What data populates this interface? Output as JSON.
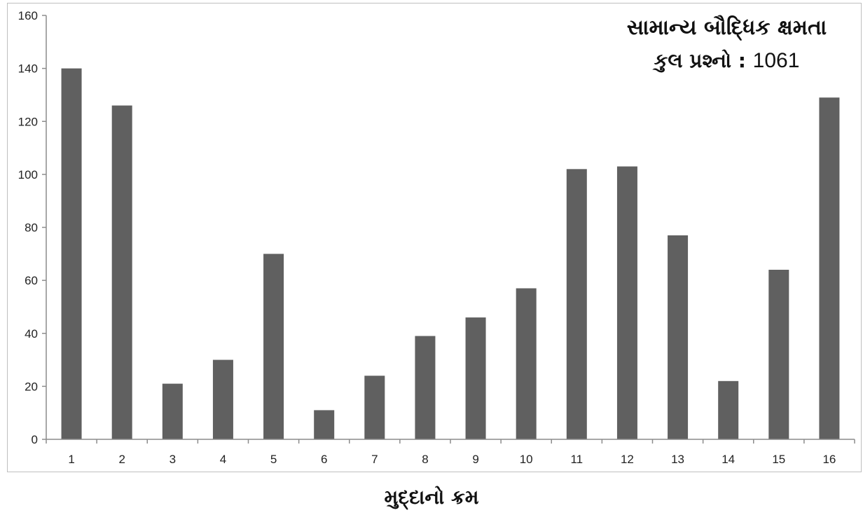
{
  "chart_data": {
    "type": "bar",
    "title": "સામાન્ય બૌદ્ધિક ક્ષમતા",
    "subtitle_label": "કુલ  પ્રશ્નો :",
    "subtitle_value": "1061",
    "xlabel": "મુદ્દાનો ક્રમ",
    "ylabel": "",
    "categories": [
      "1",
      "2",
      "3",
      "4",
      "5",
      "6",
      "7",
      "8",
      "9",
      "10",
      "11",
      "12",
      "13",
      "14",
      "15",
      "16"
    ],
    "values": [
      140,
      126,
      21,
      30,
      70,
      11,
      24,
      39,
      46,
      57,
      102,
      103,
      77,
      22,
      64,
      129
    ],
    "ylim": [
      0,
      160
    ],
    "yticks": [
      "0",
      "20",
      "40",
      "60",
      "80",
      "100",
      "120",
      "140",
      "160"
    ],
    "grid": false,
    "legend": "none",
    "bar_color": "#606060"
  }
}
